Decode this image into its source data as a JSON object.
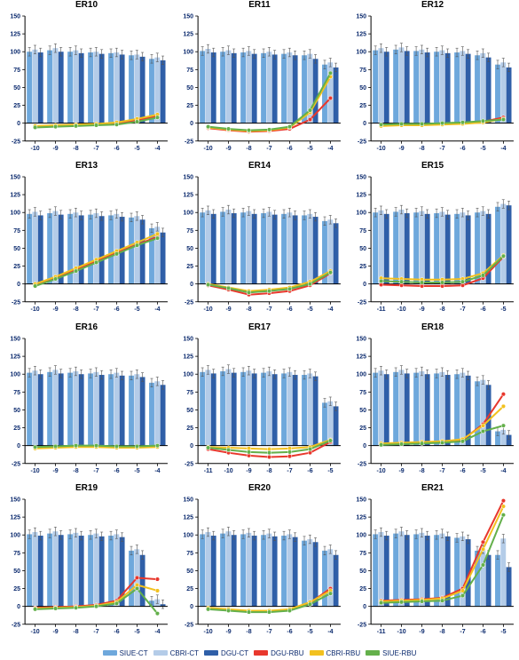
{
  "page_bg": "#ffffff",
  "title_fontsize": 10,
  "tick_fontsize": 7,
  "tick_color": "#0b2a6e",
  "axis_color": "#000000",
  "errbar_color": "#555555",
  "errbar_width": 1,
  "ytick_step": 25,
  "ylim": [
    -25,
    150
  ],
  "bar_series": [
    {
      "name": "SIUE-CT",
      "color": "#6ea8dc"
    },
    {
      "name": "CBRI-CT",
      "color": "#b4cce8"
    },
    {
      "name": "DGU-CT",
      "color": "#2f5fa8"
    }
  ],
  "line_series": [
    {
      "name": "DGU-RBU",
      "color": "#e8382d"
    },
    {
      "name": "CBRI-RBU",
      "color": "#f2c11f"
    },
    {
      "name": "SIUE-RBU",
      "color": "#64b04b"
    }
  ],
  "line_width": 2,
  "marker_radius": 2.3,
  "bar_group_width": 0.82,
  "err_val": 6,
  "panels": [
    {
      "title": "ER10",
      "x": [
        -10,
        -9,
        -8,
        -7,
        -6,
        -5,
        -4
      ],
      "bars": {
        "SIUE-CT": [
          100,
          102,
          100,
          99,
          98,
          95,
          90
        ],
        "CBRI-CT": [
          103,
          105,
          102,
          100,
          99,
          96,
          92
        ],
        "DGU-CT": [
          99,
          100,
          98,
          97,
          96,
          93,
          88
        ]
      },
      "lines": {
        "DGU-RBU": [
          -5,
          -4,
          -3,
          -2,
          -1,
          4,
          10
        ],
        "CBRI-RBU": [
          -4,
          -3,
          -2,
          -1,
          1,
          6,
          12
        ],
        "SIUE-RBU": [
          -6,
          -5,
          -4,
          -3,
          -2,
          2,
          8
        ]
      }
    },
    {
      "title": "ER11",
      "x": [
        -10,
        -9,
        -8,
        -7,
        -6,
        -5,
        -4
      ],
      "bars": {
        "SIUE-CT": [
          101,
          100,
          99,
          98,
          97,
          95,
          82
        ],
        "CBRI-CT": [
          104,
          102,
          101,
          100,
          99,
          97,
          85
        ],
        "DGU-CT": [
          99,
          98,
          97,
          96,
          95,
          90,
          78
        ]
      },
      "lines": {
        "DGU-RBU": [
          -7,
          -10,
          -12,
          -11,
          -8,
          5,
          35
        ],
        "CBRI-RBU": [
          -6,
          -9,
          -11,
          -10,
          -6,
          15,
          65
        ],
        "SIUE-RBU": [
          -5,
          -8,
          -10,
          -9,
          -5,
          18,
          70
        ]
      }
    },
    {
      "title": "ER12",
      "x": [
        -10,
        -9,
        -8,
        -7,
        -6,
        -5,
        -4
      ],
      "bars": {
        "SIUE-CT": [
          102,
          103,
          101,
          100,
          99,
          95,
          82
        ],
        "CBRI-CT": [
          105,
          106,
          103,
          102,
          101,
          98,
          85
        ],
        "DGU-CT": [
          100,
          101,
          99,
          98,
          97,
          92,
          78
        ]
      },
      "lines": {
        "DGU-RBU": [
          -3,
          -2,
          -2,
          -1,
          0,
          2,
          8
        ],
        "CBRI-RBU": [
          -4,
          -3,
          -3,
          -2,
          -1,
          1,
          6
        ],
        "SIUE-RBU": [
          -2,
          -1,
          -1,
          0,
          1,
          3,
          5
        ]
      }
    },
    {
      "title": "ER13",
      "x": [
        -10,
        -9,
        -8,
        -7,
        -6,
        -5,
        -4
      ],
      "bars": {
        "SIUE-CT": [
          98,
          99,
          98,
          97,
          96,
          93,
          78
        ],
        "CBRI-CT": [
          101,
          102,
          100,
          99,
          98,
          95,
          80
        ],
        "DGU-CT": [
          96,
          97,
          96,
          95,
          94,
          90,
          72
        ]
      },
      "lines": {
        "DGU-RBU": [
          -2,
          8,
          20,
          32,
          44,
          55,
          66
        ],
        "CBRI-RBU": [
          0,
          10,
          22,
          34,
          46,
          58,
          70
        ],
        "SIUE-RBU": [
          -3,
          7,
          18,
          30,
          42,
          54,
          64
        ]
      }
    },
    {
      "title": "ER14",
      "x": [
        -10,
        -9,
        -8,
        -7,
        -6,
        -5,
        -4
      ],
      "bars": {
        "SIUE-CT": [
          100,
          101,
          100,
          99,
          98,
          96,
          88
        ],
        "CBRI-CT": [
          103,
          104,
          102,
          101,
          100,
          98,
          90
        ],
        "DGU-CT": [
          98,
          99,
          98,
          97,
          96,
          94,
          85
        ]
      },
      "lines": {
        "DGU-RBU": [
          -2,
          -8,
          -15,
          -13,
          -10,
          -2,
          15
        ],
        "CBRI-RBU": [
          0,
          -5,
          -10,
          -8,
          -5,
          3,
          18
        ],
        "SIUE-RBU": [
          -1,
          -6,
          -12,
          -10,
          -7,
          0,
          16
        ]
      }
    },
    {
      "title": "ER15",
      "x": [
        -11,
        -10,
        -9,
        -8,
        -7,
        -6,
        -5
      ],
      "bars": {
        "SIUE-CT": [
          100,
          101,
          100,
          99,
          98,
          100,
          108
        ],
        "CBRI-CT": [
          103,
          104,
          102,
          101,
          100,
          102,
          112
        ],
        "DGU-CT": [
          98,
          99,
          98,
          97,
          96,
          98,
          110
        ]
      },
      "lines": {
        "DGU-RBU": [
          -1,
          -2,
          -3,
          -3,
          -2,
          8,
          38
        ],
        "CBRI-RBU": [
          8,
          7,
          6,
          6,
          7,
          15,
          40
        ],
        "SIUE-RBU": [
          4,
          3,
          2,
          2,
          3,
          12,
          39
        ]
      }
    },
    {
      "title": "ER16",
      "x": [
        -10,
        -9,
        -8,
        -7,
        -6,
        -5,
        -4
      ],
      "bars": {
        "SIUE-CT": [
          102,
          103,
          102,
          101,
          100,
          98,
          88
        ],
        "CBRI-CT": [
          105,
          106,
          104,
          103,
          102,
          100,
          90
        ],
        "DGU-CT": [
          100,
          101,
          100,
          99,
          98,
          96,
          85
        ]
      },
      "lines": {
        "DGU-RBU": [
          -3,
          -2,
          -1,
          -1,
          -2,
          -2,
          -1
        ],
        "CBRI-RBU": [
          -4,
          -3,
          -2,
          -2,
          -3,
          -3,
          -2
        ],
        "SIUE-RBU": [
          -2,
          -1,
          0,
          0,
          -1,
          -1,
          0
        ]
      }
    },
    {
      "title": "ER17",
      "x": [
        -11,
        -10,
        -9,
        -8,
        -7,
        -6,
        -5
      ],
      "bars": {
        "SIUE-CT": [
          103,
          104,
          103,
          102,
          101,
          99,
          60
        ],
        "CBRI-CT": [
          106,
          107,
          105,
          104,
          103,
          101,
          62
        ],
        "DGU-CT": [
          101,
          102,
          101,
          100,
          99,
          97,
          55
        ]
      },
      "lines": {
        "DGU-RBU": [
          -5,
          -10,
          -14,
          -16,
          -15,
          -10,
          5
        ],
        "CBRI-RBU": [
          -2,
          -3,
          -4,
          -5,
          -4,
          -2,
          8
        ],
        "SIUE-RBU": [
          -3,
          -6,
          -9,
          -10,
          -9,
          -5,
          7
        ]
      }
    },
    {
      "title": "ER18",
      "x": [
        -10,
        -9,
        -8,
        -7,
        -6,
        -5,
        -4
      ],
      "bars": {
        "SIUE-CT": [
          102,
          103,
          102,
          101,
          100,
          90,
          20
        ],
        "CBRI-CT": [
          105,
          106,
          104,
          103,
          102,
          92,
          22
        ],
        "DGU-CT": [
          100,
          101,
          100,
          99,
          98,
          85,
          15
        ]
      },
      "lines": {
        "DGU-RBU": [
          2,
          3,
          4,
          5,
          8,
          30,
          72
        ],
        "CBRI-RBU": [
          3,
          4,
          5,
          6,
          9,
          28,
          55
        ],
        "SIUE-RBU": [
          1,
          2,
          3,
          4,
          6,
          20,
          28
        ]
      }
    },
    {
      "title": "ER19",
      "x": [
        -10,
        -9,
        -8,
        -7,
        -6,
        -5,
        -4
      ],
      "bars": {
        "SIUE-CT": [
          101,
          102,
          101,
          100,
          99,
          78,
          8
        ],
        "CBRI-CT": [
          104,
          105,
          103,
          102,
          101,
          80,
          10
        ],
        "DGU-CT": [
          99,
          100,
          99,
          98,
          97,
          72,
          3
        ]
      },
      "lines": {
        "DGU-RBU": [
          -2,
          -1,
          0,
          2,
          8,
          40,
          38
        ],
        "CBRI-RBU": [
          -3,
          -2,
          -1,
          1,
          6,
          30,
          22
        ],
        "SIUE-RBU": [
          -4,
          -3,
          -2,
          0,
          4,
          25,
          -10
        ]
      }
    },
    {
      "title": "ER20",
      "x": [
        -10,
        -9,
        -8,
        -7,
        -6,
        -5,
        -4
      ],
      "bars": {
        "SIUE-CT": [
          101,
          102,
          101,
          100,
          99,
          92,
          78
        ],
        "CBRI-CT": [
          104,
          105,
          103,
          102,
          101,
          94,
          80
        ],
        "DGU-CT": [
          99,
          100,
          99,
          98,
          97,
          90,
          72
        ]
      },
      "lines": {
        "DGU-RBU": [
          -3,
          -5,
          -7,
          -7,
          -5,
          5,
          25
        ],
        "CBRI-RBU": [
          -2,
          -4,
          -6,
          -6,
          -4,
          6,
          22
        ],
        "SIUE-RBU": [
          -4,
          -6,
          -8,
          -8,
          -6,
          3,
          18
        ]
      }
    },
    {
      "title": "ER21",
      "x": [
        -11,
        -10,
        -9,
        -8,
        -7,
        -6,
        -5
      ],
      "bars": {
        "SIUE-CT": [
          101,
          102,
          101,
          100,
          96,
          78,
          72
        ],
        "CBRI-CT": [
          104,
          105,
          103,
          102,
          98,
          80,
          95
        ],
        "DGU-CT": [
          99,
          100,
          99,
          98,
          94,
          72,
          55
        ]
      },
      "lines": {
        "DGU-RBU": [
          8,
          9,
          10,
          12,
          25,
          90,
          148
        ],
        "CBRI-RBU": [
          7,
          8,
          9,
          11,
          22,
          80,
          140
        ],
        "SIUE-RBU": [
          5,
          6,
          7,
          8,
          15,
          58,
          128
        ]
      }
    }
  ],
  "legend_text": {
    "siue_ct": "SIUE-CT",
    "cbri_ct": "CBRI-CT",
    "dgu_ct": "DGU-CT",
    "dgu_rbu": "DGU-RBU",
    "cbri_rbu": "CBRI-RBU",
    "siue_rbu": "SIUE-RBU"
  }
}
